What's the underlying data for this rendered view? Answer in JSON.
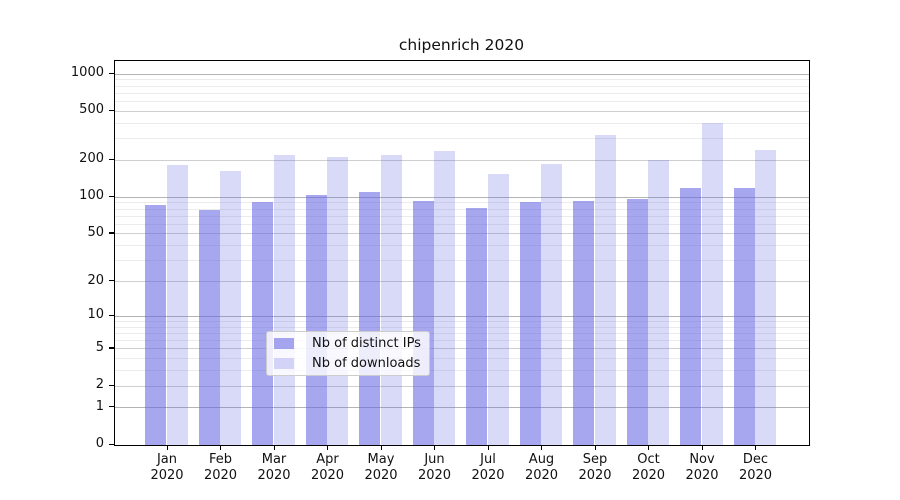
{
  "title": "chipenrich 2020",
  "legend": {
    "items": [
      {
        "label": "Nb of distinct IPs",
        "series_key": "ips"
      },
      {
        "label": "Nb of downloads",
        "series_key": "downloads"
      }
    ]
  },
  "colors": {
    "bar_base_rgb": "98,98,226",
    "ips_alpha": 0.56,
    "downloads_alpha": 0.245,
    "grid_decade": "#b4b4b4",
    "grid_labeled": "#cfcfcf",
    "grid_minor": "#ebebeb",
    "axis": "#000000"
  },
  "chart_data": {
    "type": "bar",
    "title": "chipenrich 2020",
    "categories": [
      "Jan 2020",
      "Feb 2020",
      "Mar 2020",
      "Apr 2020",
      "May 2020",
      "Jun 2020",
      "Jul 2020",
      "Aug 2020",
      "Sep 2020",
      "Oct 2020",
      "Nov 2020",
      "Dec 2020"
    ],
    "series": [
      {
        "name": "Nb of distinct IPs",
        "key": "ips",
        "values": [
          86,
          78,
          92,
          104,
          111,
          93,
          81,
          91,
          93,
          97,
          120,
          118
        ]
      },
      {
        "name": "Nb of downloads",
        "key": "downloads",
        "values": [
          182,
          163,
          221,
          211,
          221,
          239,
          156,
          188,
          320,
          201,
          400,
          242
        ]
      }
    ],
    "xlabel": "",
    "ylabel": "",
    "yscale": "log10(1+y)",
    "yticks": [
      0,
      1,
      2,
      5,
      10,
      20,
      50,
      100,
      200,
      500,
      1000
    ],
    "ylim": [
      0,
      1280
    ],
    "grid": true,
    "minor_gridlines": [
      3,
      4,
      6,
      7,
      8,
      9,
      30,
      40,
      60,
      70,
      80,
      90,
      300,
      400,
      600,
      700,
      800,
      900
    ],
    "labeled_mid_gridlines": [
      2,
      5,
      20,
      50,
      200,
      500
    ],
    "decade_gridlines": [
      1,
      10,
      100,
      1000
    ],
    "legend_position": "lower center inside"
  }
}
